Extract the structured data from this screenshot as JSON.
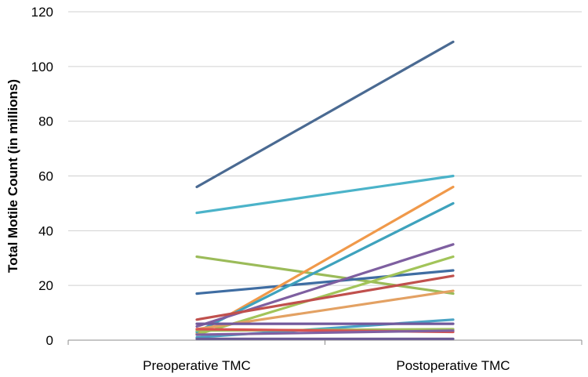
{
  "chart_data": {
    "type": "line",
    "title": "",
    "xlabel": "",
    "ylabel": "Total Motile Count (in millions)",
    "categories": [
      "Preoperative TMC",
      "Postoperative TMC"
    ],
    "yticks": [
      "0",
      "20",
      "40",
      "60",
      "80",
      "100",
      "120"
    ],
    "ylim": [
      0,
      120
    ],
    "grid": "horizontal",
    "legend": "none",
    "series": [
      {
        "values": [
          56,
          109
        ],
        "color": "#4a6a92"
      },
      {
        "values": [
          46.5,
          60
        ],
        "color": "#4bb3c9"
      },
      {
        "values": [
          30.5,
          17
        ],
        "color": "#9bbb59"
      },
      {
        "values": [
          17,
          25.5
        ],
        "color": "#3f6da2"
      },
      {
        "values": [
          2.5,
          56
        ],
        "color": "#f0994a"
      },
      {
        "values": [
          3,
          50
        ],
        "color": "#3ea2bd"
      },
      {
        "values": [
          5,
          35
        ],
        "color": "#7e5fa0"
      },
      {
        "values": [
          2,
          30.5
        ],
        "color": "#a2c459"
      },
      {
        "values": [
          7.5,
          23.5
        ],
        "color": "#c0504d"
      },
      {
        "values": [
          4,
          18
        ],
        "color": "#e3a163"
      },
      {
        "values": [
          1,
          7.5
        ],
        "color": "#4aa3c4"
      },
      {
        "values": [
          6,
          6
        ],
        "color": "#71589b"
      },
      {
        "values": [
          3.5,
          4
        ],
        "color": "#9fbf5c"
      },
      {
        "values": [
          4,
          3
        ],
        "color": "#d9534f"
      },
      {
        "values": [
          2,
          3.5
        ],
        "color": "#8060a1"
      },
      {
        "values": [
          0.5,
          0.5
        ],
        "color": "#6b5a95"
      }
    ]
  }
}
